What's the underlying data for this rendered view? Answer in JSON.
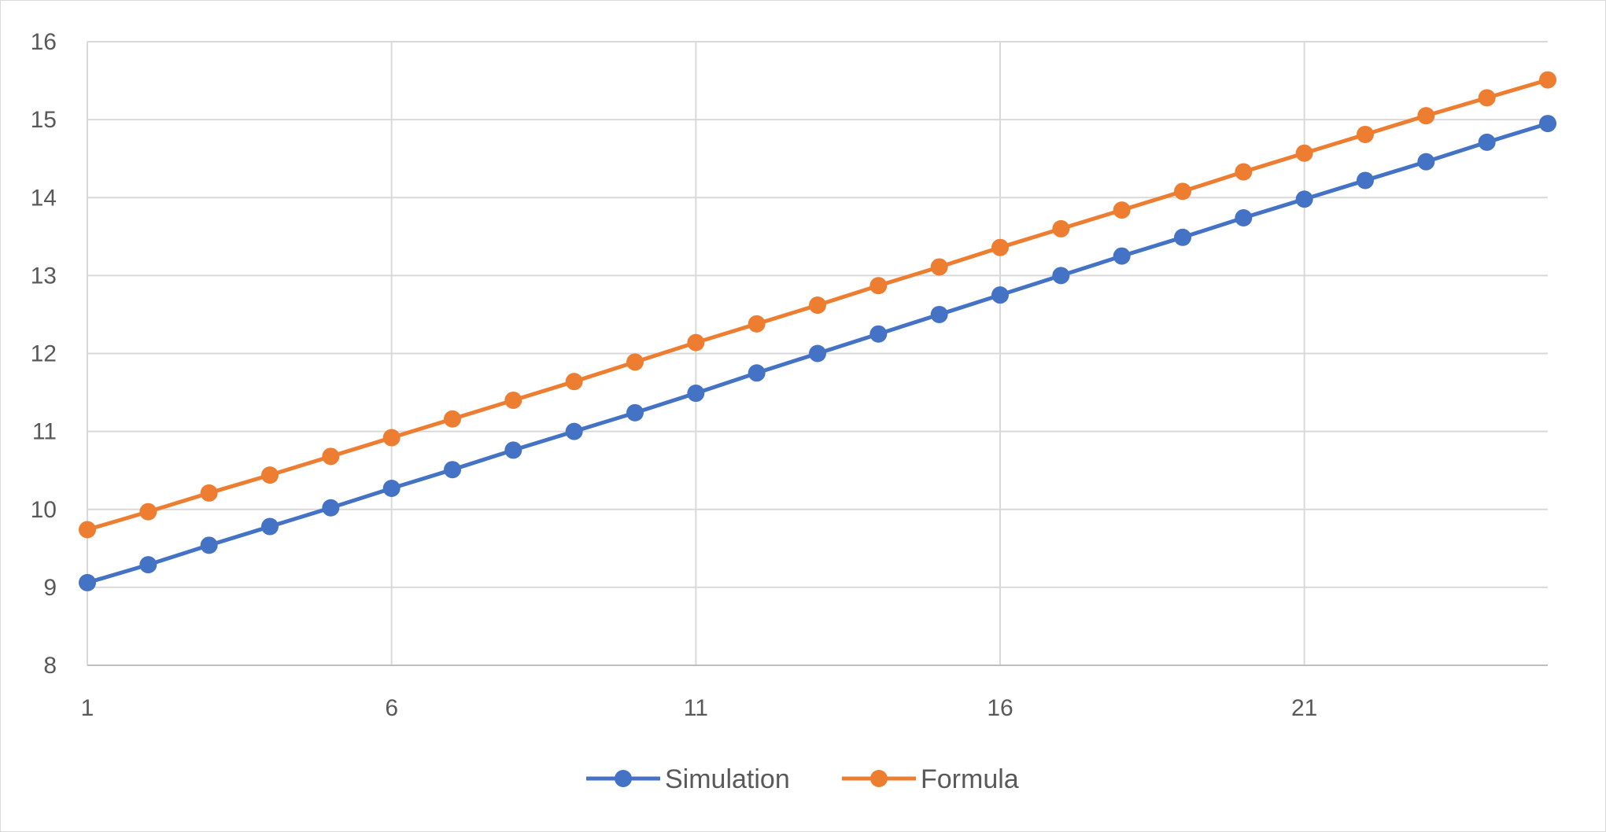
{
  "chart_data": {
    "type": "line",
    "title": "",
    "xlabel": "",
    "ylabel": "",
    "x": [
      1,
      2,
      3,
      4,
      5,
      6,
      7,
      8,
      9,
      10,
      11,
      12,
      13,
      14,
      15,
      16,
      17,
      18,
      19,
      20,
      21,
      22,
      23,
      24,
      25
    ],
    "xticks": [
      "1",
      "6",
      "11",
      "16",
      "21"
    ],
    "xlim": [
      1,
      25
    ],
    "yticks": [
      "8",
      "9",
      "10",
      "11",
      "12",
      "13",
      "14",
      "15",
      "16"
    ],
    "ylim": [
      8,
      16
    ],
    "grid": true,
    "legend_position": "bottom",
    "marker": "circle",
    "series": [
      {
        "name": "Simulation",
        "color": "#4472c4",
        "values": [
          9.06,
          9.29,
          9.54,
          9.78,
          10.02,
          10.27,
          10.51,
          10.76,
          11.0,
          11.24,
          11.49,
          11.75,
          12.0,
          12.25,
          12.5,
          12.75,
          13.0,
          13.25,
          13.49,
          13.74,
          13.98,
          14.22,
          14.46,
          14.71,
          14.95
        ]
      },
      {
        "name": "Formula",
        "color": "#ed7d31",
        "values": [
          9.74,
          9.97,
          10.21,
          10.44,
          10.68,
          10.92,
          11.16,
          11.4,
          11.64,
          11.89,
          12.14,
          12.38,
          12.62,
          12.87,
          13.11,
          13.36,
          13.6,
          13.84,
          14.08,
          14.33,
          14.57,
          14.81,
          15.05,
          15.28,
          15.51
        ]
      }
    ]
  }
}
